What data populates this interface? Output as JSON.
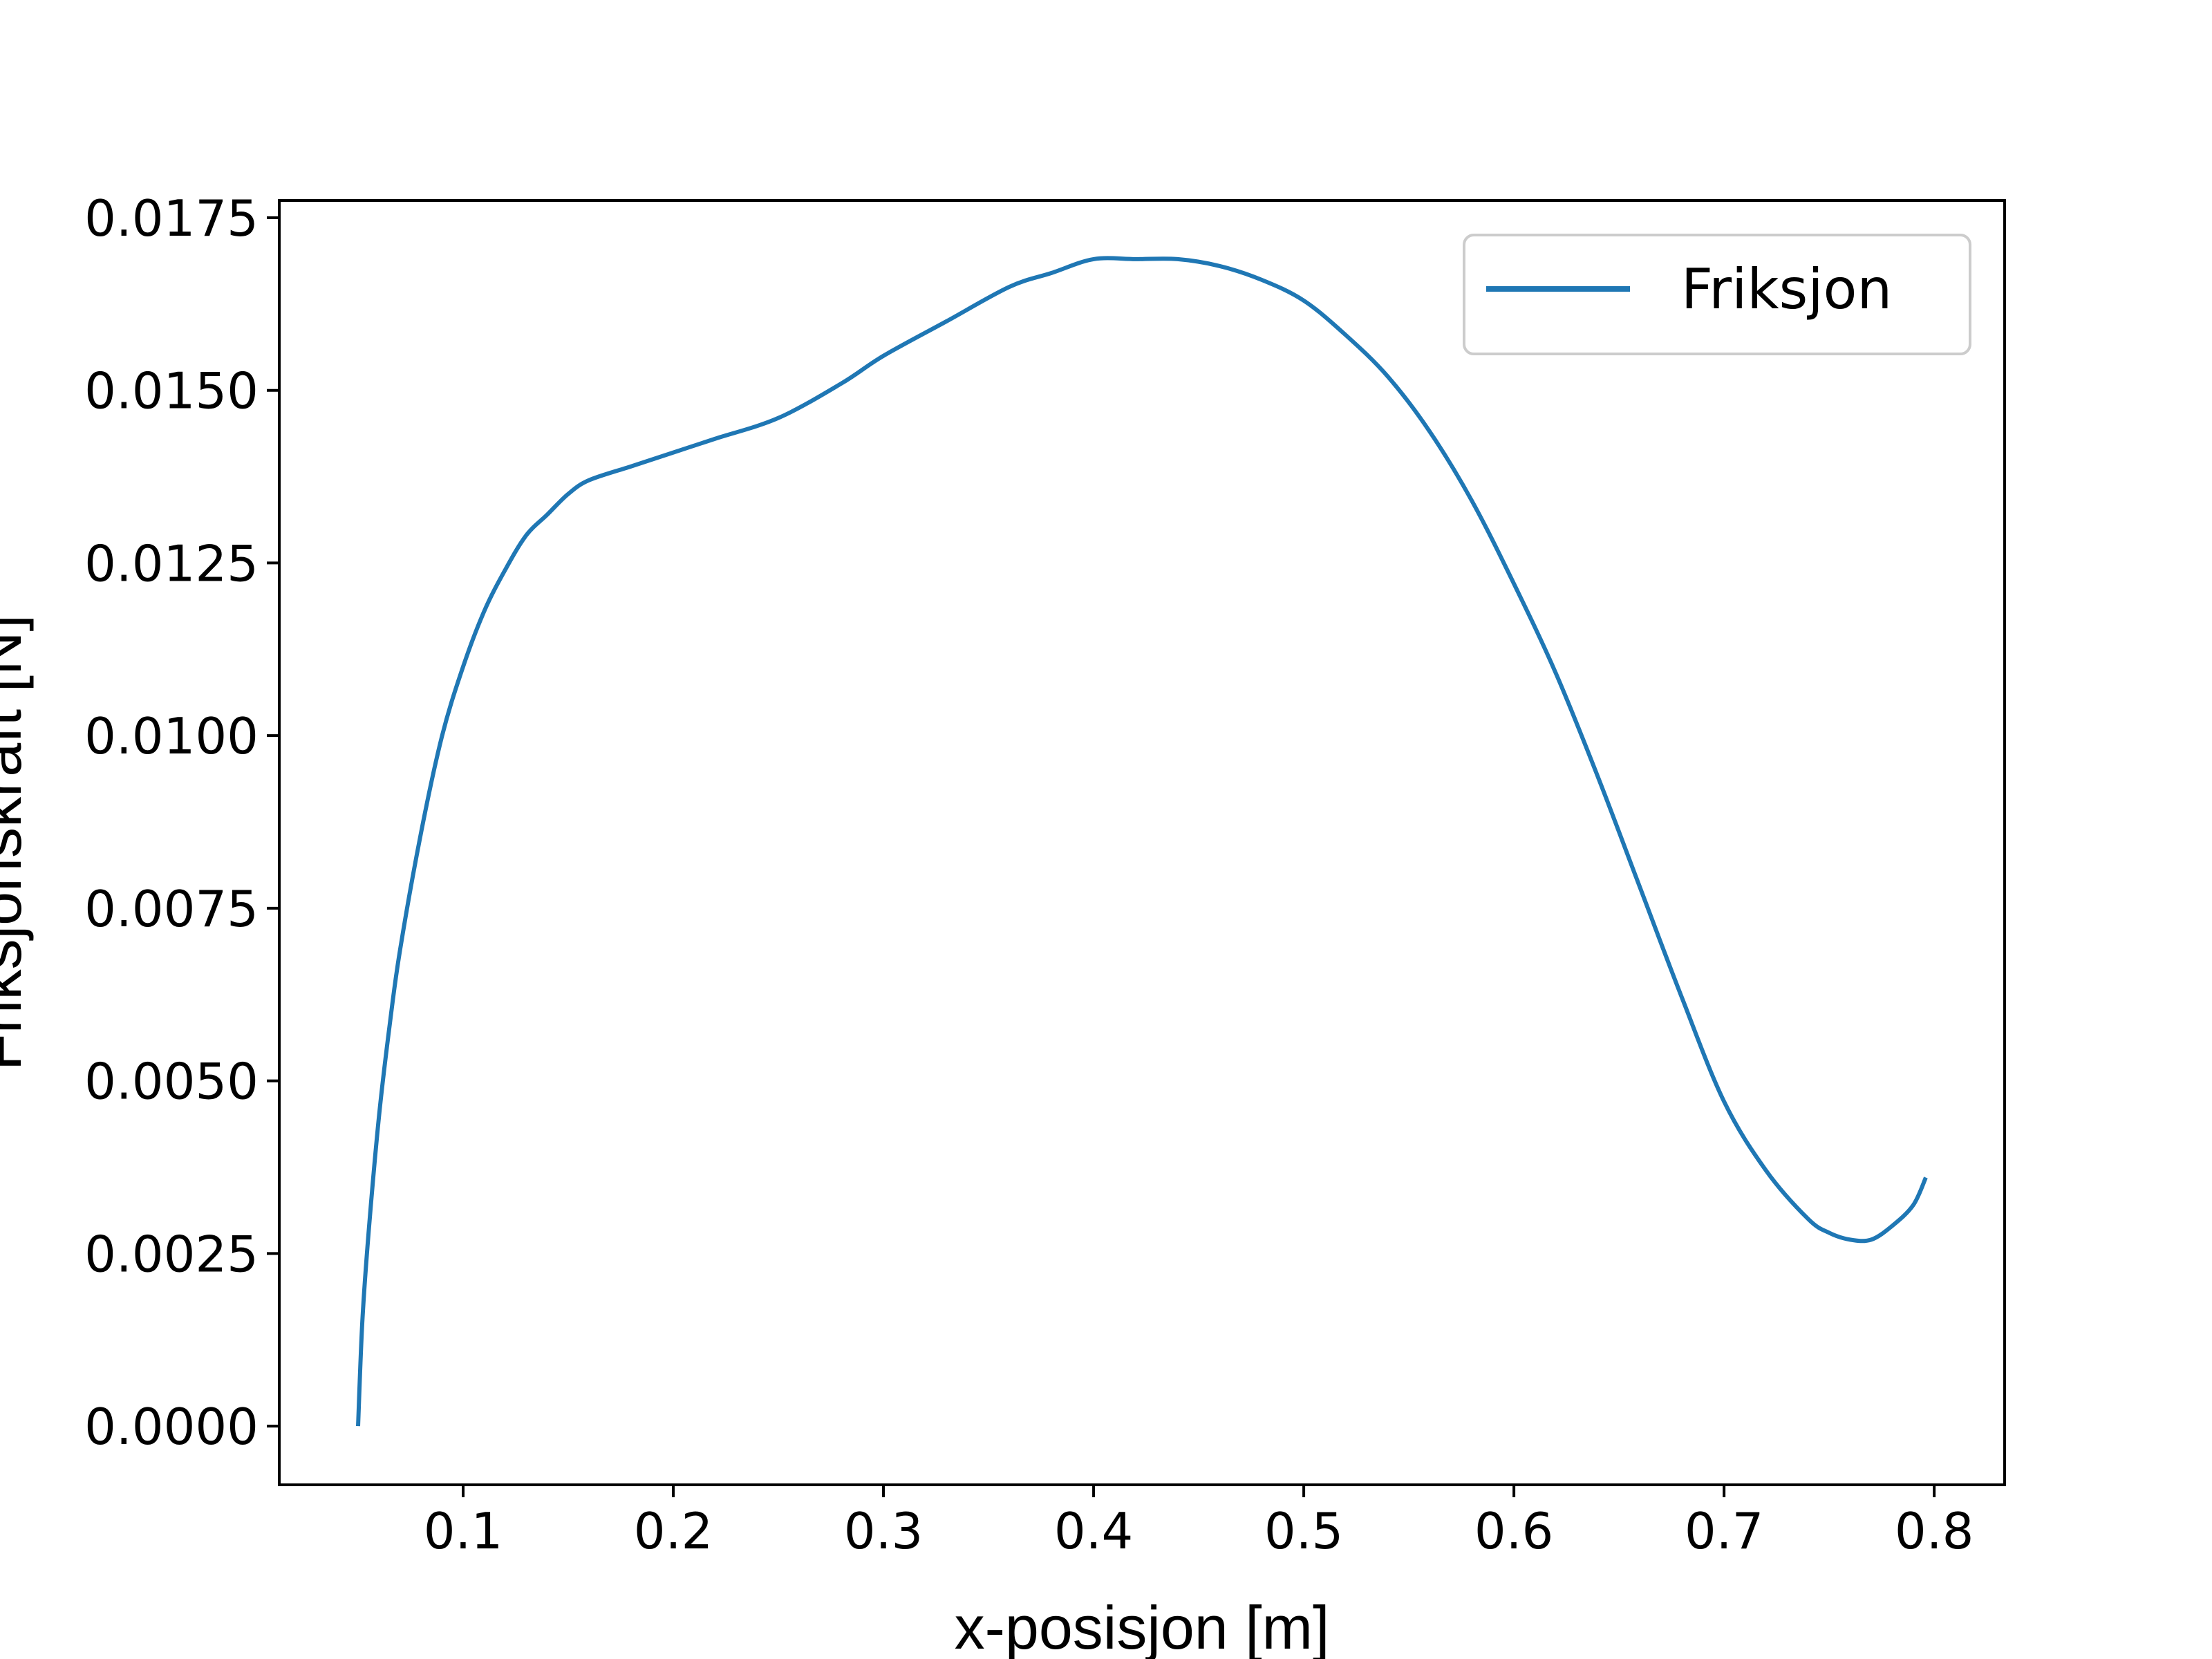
{
  "chart_data": {
    "type": "line",
    "title": "",
    "xlabel": "x-posisjon [m]",
    "ylabel": "Friksjonskraft [N]",
    "xlim": [
      0.0125,
      0.8335
    ],
    "ylim": [
      -0.00085,
      0.01775
    ],
    "xticks": [
      0.1,
      0.2,
      0.3,
      0.4,
      0.5,
      0.6,
      0.7,
      0.8
    ],
    "xtick_labels": [
      "0.1",
      "0.2",
      "0.3",
      "0.4",
      "0.5",
      "0.6",
      "0.7",
      "0.8"
    ],
    "yticks": [
      0.0,
      0.0025,
      0.005,
      0.0075,
      0.01,
      0.0125,
      0.015,
      0.0175
    ],
    "ytick_labels": [
      "0.0000",
      "0.0025",
      "0.0050",
      "0.0075",
      "0.0100",
      "0.0125",
      "0.0150",
      "0.0175"
    ],
    "grid": false,
    "legend_position": "top-right",
    "series": [
      {
        "name": "Friksjon",
        "color": "#1f77b4",
        "x": [
          0.05,
          0.052,
          0.055,
          0.06,
          0.065,
          0.07,
          0.08,
          0.09,
          0.1,
          0.11,
          0.12,
          0.13,
          0.14,
          0.15,
          0.16,
          0.18,
          0.2,
          0.22,
          0.25,
          0.28,
          0.3,
          0.33,
          0.36,
          0.38,
          0.4,
          0.42,
          0.44,
          0.46,
          0.48,
          0.5,
          0.52,
          0.54,
          0.56,
          0.58,
          0.6,
          0.62,
          0.64,
          0.66,
          0.68,
          0.7,
          0.72,
          0.74,
          0.75,
          0.76,
          0.77,
          0.78,
          0.79,
          0.796
        ],
        "y": [
          0.0,
          0.0015,
          0.0028,
          0.0045,
          0.0058,
          0.0069,
          0.0086,
          0.01,
          0.011,
          0.0118,
          0.0124,
          0.0129,
          0.0132,
          0.0135,
          0.0137,
          0.0139,
          0.0141,
          0.0143,
          0.0146,
          0.0151,
          0.0155,
          0.016,
          0.0165,
          0.0167,
          0.0169,
          0.0169,
          0.0169,
          0.0168,
          0.0166,
          0.0163,
          0.0158,
          0.0152,
          0.0144,
          0.0134,
          0.0122,
          0.0109,
          0.0094,
          0.0078,
          0.0062,
          0.0047,
          0.0037,
          0.003,
          0.0028,
          0.0027,
          0.0027,
          0.0029,
          0.0032,
          0.0036
        ]
      }
    ]
  }
}
